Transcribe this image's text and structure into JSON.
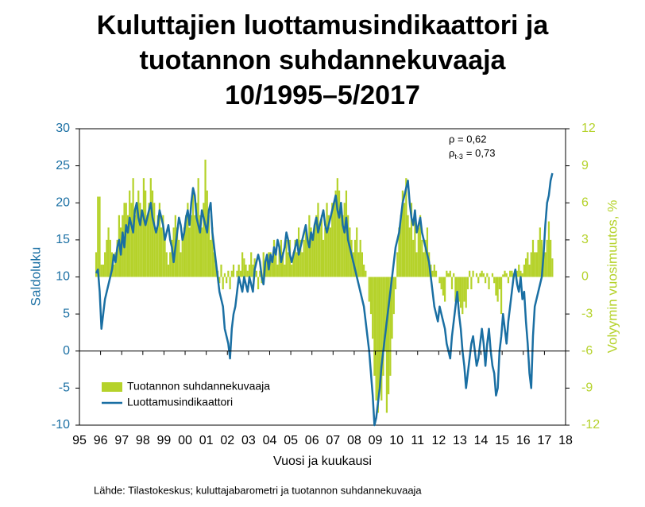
{
  "chart_data": {
    "type": "bar_line",
    "title": [
      "Kuluttajien luottamusindikaattori ja",
      "tuotannon suhdannekuvaaja",
      "10/1995–5/2017"
    ],
    "xlabel": "Vuosi ja kuukausi",
    "ylabel": "Saldoluku",
    "y2label": "Volyymin vuosimuutos, %",
    "annotations": [
      "ρ = 0,62",
      {
        "text": "ρ",
        "subscript": "t-3",
        "suffix": "= 0,73"
      }
    ],
    "source": "Lähde: Tilastokeskus;  kuluttajabarometri  ja tuotannon  suhdannekuvaaja",
    "xlim": [
      1995,
      2018
    ],
    "xticks": [
      {
        "value": 1995,
        "label": "95"
      },
      {
        "value": 1996,
        "label": "96"
      },
      {
        "value": 1997,
        "label": "97"
      },
      {
        "value": 1998,
        "label": "98"
      },
      {
        "value": 1999,
        "label": "99"
      },
      {
        "value": 2000,
        "label": "00"
      },
      {
        "value": 2001,
        "label": "01"
      },
      {
        "value": 2002,
        "label": "02"
      },
      {
        "value": 2003,
        "label": "03"
      },
      {
        "value": 2004,
        "label": "04"
      },
      {
        "value": 2005,
        "label": "05"
      },
      {
        "value": 2006,
        "label": "06"
      },
      {
        "value": 2007,
        "label": "07"
      },
      {
        "value": 2008,
        "label": "08"
      },
      {
        "value": 2009,
        "label": "09"
      },
      {
        "value": 2010,
        "label": "10"
      },
      {
        "value": 2011,
        "label": "11"
      },
      {
        "value": 2012,
        "label": "12"
      },
      {
        "value": 2013,
        "label": "13"
      },
      {
        "value": 2014,
        "label": "14"
      },
      {
        "value": 2015,
        "label": "15"
      },
      {
        "value": 2016,
        "label": "16"
      },
      {
        "value": 2017,
        "label": "17"
      },
      {
        "value": 2018,
        "label": "18"
      }
    ],
    "ylim": [
      -10,
      30
    ],
    "yticks": [
      -10,
      -5,
      0,
      5,
      10,
      15,
      20,
      25,
      30
    ],
    "y2lim": [
      -12,
      12
    ],
    "y2ticks": [
      -12,
      -9,
      -6,
      -3,
      0,
      3,
      6,
      9,
      12
    ],
    "legend": "lower left",
    "x": [
      "1995-10",
      "1995-11",
      "1995-12",
      "1996-01",
      "1996-02",
      "1996-03",
      "1996-04",
      "1996-05",
      "1996-06",
      "1996-07",
      "1996-08",
      "1996-09",
      "1996-10",
      "1996-11",
      "1996-12",
      "1997-01",
      "1997-02",
      "1997-03",
      "1997-04",
      "1997-05",
      "1997-06",
      "1997-07",
      "1997-08",
      "1997-09",
      "1997-10",
      "1997-11",
      "1997-12",
      "1998-01",
      "1998-02",
      "1998-03",
      "1998-04",
      "1998-05",
      "1998-06",
      "1998-07",
      "1998-08",
      "1998-09",
      "1998-10",
      "1998-11",
      "1998-12",
      "1999-01",
      "1999-02",
      "1999-03",
      "1999-04",
      "1999-05",
      "1999-06",
      "1999-07",
      "1999-08",
      "1999-09",
      "1999-10",
      "1999-11",
      "1999-12",
      "2000-01",
      "2000-02",
      "2000-03",
      "2000-04",
      "2000-05",
      "2000-06",
      "2000-07",
      "2000-08",
      "2000-09",
      "2000-10",
      "2000-11",
      "2000-12",
      "2001-01",
      "2001-02",
      "2001-03",
      "2001-04",
      "2001-05",
      "2001-06",
      "2001-07",
      "2001-08",
      "2001-09",
      "2001-10",
      "2001-11",
      "2001-12",
      "2002-01",
      "2002-02",
      "2002-03",
      "2002-04",
      "2002-05",
      "2002-06",
      "2002-07",
      "2002-08",
      "2002-09",
      "2002-10",
      "2002-11",
      "2002-12",
      "2003-01",
      "2003-02",
      "2003-03",
      "2003-04",
      "2003-05",
      "2003-06",
      "2003-07",
      "2003-08",
      "2003-09",
      "2003-10",
      "2003-11",
      "2003-12",
      "2004-01",
      "2004-02",
      "2004-03",
      "2004-04",
      "2004-05",
      "2004-06",
      "2004-07",
      "2004-08",
      "2004-09",
      "2004-10",
      "2004-11",
      "2004-12",
      "2005-01",
      "2005-02",
      "2005-03",
      "2005-04",
      "2005-05",
      "2005-06",
      "2005-07",
      "2005-08",
      "2005-09",
      "2005-10",
      "2005-11",
      "2005-12",
      "2006-01",
      "2006-02",
      "2006-03",
      "2006-04",
      "2006-05",
      "2006-06",
      "2006-07",
      "2006-08",
      "2006-09",
      "2006-10",
      "2006-11",
      "2006-12",
      "2007-01",
      "2007-02",
      "2007-03",
      "2007-04",
      "2007-05",
      "2007-06",
      "2007-07",
      "2007-08",
      "2007-09",
      "2007-10",
      "2007-11",
      "2007-12",
      "2008-01",
      "2008-02",
      "2008-03",
      "2008-04",
      "2008-05",
      "2008-06",
      "2008-07",
      "2008-08",
      "2008-09",
      "2008-10",
      "2008-11",
      "2008-12",
      "2009-01",
      "2009-02",
      "2009-03",
      "2009-04",
      "2009-05",
      "2009-06",
      "2009-07",
      "2009-08",
      "2009-09",
      "2009-10",
      "2009-11",
      "2009-12",
      "2010-01",
      "2010-02",
      "2010-03",
      "2010-04",
      "2010-05",
      "2010-06",
      "2010-07",
      "2010-08",
      "2010-09",
      "2010-10",
      "2010-11",
      "2010-12",
      "2011-01",
      "2011-02",
      "2011-03",
      "2011-04",
      "2011-05",
      "2011-06",
      "2011-07",
      "2011-08",
      "2011-09",
      "2011-10",
      "2011-11",
      "2011-12",
      "2012-01",
      "2012-02",
      "2012-03",
      "2012-04",
      "2012-05",
      "2012-06",
      "2012-07",
      "2012-08",
      "2012-09",
      "2012-10",
      "2012-11",
      "2012-12",
      "2013-01",
      "2013-02",
      "2013-03",
      "2013-04",
      "2013-05",
      "2013-06",
      "2013-07",
      "2013-08",
      "2013-09",
      "2013-10",
      "2013-11",
      "2013-12",
      "2014-01",
      "2014-02",
      "2014-03",
      "2014-04",
      "2014-05",
      "2014-06",
      "2014-07",
      "2014-08",
      "2014-09",
      "2014-10",
      "2014-11",
      "2014-12",
      "2015-01",
      "2015-02",
      "2015-03",
      "2015-04",
      "2015-05",
      "2015-06",
      "2015-07",
      "2015-08",
      "2015-09",
      "2015-10",
      "2015-11",
      "2015-12",
      "2016-01",
      "2016-02",
      "2016-03",
      "2016-04",
      "2016-05",
      "2016-06",
      "2016-07",
      "2016-08",
      "2016-09",
      "2016-10",
      "2016-11",
      "2016-12",
      "2017-01",
      "2017-02",
      "2017-03",
      "2017-04",
      "2017-05"
    ],
    "series": [
      {
        "name": "Tuotannon suhdannekuvaaja",
        "type": "bar",
        "axis": "y2",
        "color": "#b5d22a",
        "values": [
          2,
          6.5,
          6.5,
          1,
          1,
          2,
          3,
          4,
          3,
          2,
          1,
          2,
          3,
          5,
          4,
          5,
          6,
          6,
          5,
          7,
          6,
          8,
          5,
          6,
          7,
          6,
          5,
          8,
          7,
          5,
          6,
          8,
          7,
          6,
          4,
          5,
          6,
          4,
          5,
          3,
          2,
          1,
          2,
          3,
          4,
          5,
          4,
          3,
          2,
          3,
          4,
          5,
          6,
          4,
          5,
          7,
          5,
          6,
          8,
          5,
          4,
          6,
          9.5,
          7,
          5,
          3,
          4,
          2,
          1,
          0.5,
          -0.5,
          1,
          -1,
          0.3,
          -0.5,
          0.5,
          -1,
          0.5,
          1,
          0,
          0.5,
          1,
          0.5,
          2,
          1.5,
          1,
          0.5,
          1,
          2,
          1,
          1.5,
          0.5,
          -1,
          0.5,
          -0.5,
          2,
          1,
          1.5,
          2,
          2,
          1.5,
          3,
          2,
          1,
          2.5,
          3,
          2,
          1,
          3,
          2,
          3,
          1,
          2,
          3,
          2,
          4,
          3,
          2,
          3,
          4,
          3,
          5,
          4,
          3,
          4,
          5,
          6,
          4,
          5,
          3,
          4,
          6,
          5,
          4,
          6,
          6,
          7,
          8,
          7,
          6,
          5,
          6,
          7,
          5,
          4,
          3,
          2,
          3,
          4,
          2,
          3,
          2,
          1,
          0.5,
          0,
          -2,
          -3,
          -5,
          -8,
          -10,
          -11,
          -9,
          -10,
          -8,
          -6,
          -11,
          -9.5,
          -8,
          -5,
          -3,
          -1,
          2,
          4,
          5,
          7,
          6,
          8,
          5,
          4,
          6,
          3,
          5,
          2,
          4,
          5,
          3,
          2,
          3,
          4,
          2,
          1,
          0.5,
          1,
          0.5,
          0,
          -0.5,
          -1,
          -1.5,
          -2,
          0.5,
          0.3,
          0.5,
          -1,
          0.3,
          -2,
          -1.5,
          -2,
          -2.5,
          -3,
          -2,
          -2.5,
          -1,
          0.5,
          -1,
          0.5,
          0,
          0.3,
          -0.5,
          0.3,
          0.5,
          0.3,
          -0.5,
          0.3,
          -1,
          0,
          0.3,
          -0.5,
          -1.5,
          -2,
          -1,
          -3,
          0.2,
          0.5,
          0.3,
          -0.5,
          0.5,
          0.5,
          0.3,
          0.5,
          0.5,
          1,
          0.5,
          0.3,
          1,
          1.5,
          2,
          1,
          2,
          3,
          2,
          2,
          3,
          4,
          3,
          2,
          2,
          3,
          4.5,
          3,
          1.5
        ]
      },
      {
        "name": "Luottamusindikaattori",
        "type": "line",
        "axis": "y",
        "color": "#1a6fa3",
        "values": [
          10.5,
          11,
          8,
          3,
          5,
          7,
          8,
          9,
          10,
          11,
          13,
          12,
          14,
          15,
          13,
          16,
          14,
          17,
          16,
          18,
          17,
          16,
          19,
          20,
          18,
          17,
          19,
          18,
          17,
          18,
          19,
          20,
          18,
          17,
          16,
          17,
          19,
          18,
          17,
          15,
          16,
          17,
          15,
          14,
          12,
          14,
          16,
          18,
          17,
          15,
          16,
          18,
          19,
          17,
          20,
          22,
          21,
          18,
          17,
          16,
          19,
          18,
          17,
          16,
          19,
          20,
          16,
          14,
          12,
          10,
          8,
          7,
          6,
          3,
          2,
          1,
          -1,
          3,
          5,
          6,
          8,
          10,
          9,
          8,
          10,
          9,
          8,
          10,
          9,
          8,
          11,
          12,
          13,
          12,
          10,
          9,
          12,
          13,
          11,
          13,
          12,
          14,
          13,
          15,
          14,
          12,
          13,
          14,
          16,
          15,
          13,
          12,
          13,
          14,
          15,
          13,
          14,
          15,
          16,
          17,
          15,
          14,
          16,
          15,
          17,
          18,
          16,
          17,
          18,
          19,
          17,
          16,
          17,
          18,
          19,
          20,
          21,
          19,
          18,
          20,
          17,
          16,
          18,
          15,
          14,
          13,
          12,
          11,
          10,
          9,
          8,
          7,
          6,
          4,
          2,
          0,
          -3,
          -6,
          -10,
          -9,
          -7,
          -5,
          -2,
          0,
          2,
          4,
          6,
          8,
          10,
          12,
          14,
          15,
          16,
          18,
          20,
          21,
          22,
          23,
          20,
          18,
          17,
          19,
          16,
          17,
          18,
          16,
          15,
          14,
          13,
          12,
          10,
          8,
          6,
          5,
          4,
          6,
          5,
          4,
          3,
          1,
          0,
          -1,
          2,
          4,
          6,
          8,
          5,
          3,
          0,
          -2,
          -5,
          -3,
          -1,
          1,
          2,
          0,
          -2,
          -1,
          1,
          3,
          1,
          -2,
          1,
          3,
          0,
          -2,
          -3,
          -6,
          -5,
          0,
          2,
          5,
          3,
          1,
          4,
          6,
          8,
          10,
          11,
          9,
          8,
          10,
          7,
          8,
          4,
          1,
          -3,
          -5,
          2,
          6,
          7,
          8,
          9,
          10,
          13,
          17,
          20,
          21,
          23,
          24
        ]
      }
    ]
  }
}
